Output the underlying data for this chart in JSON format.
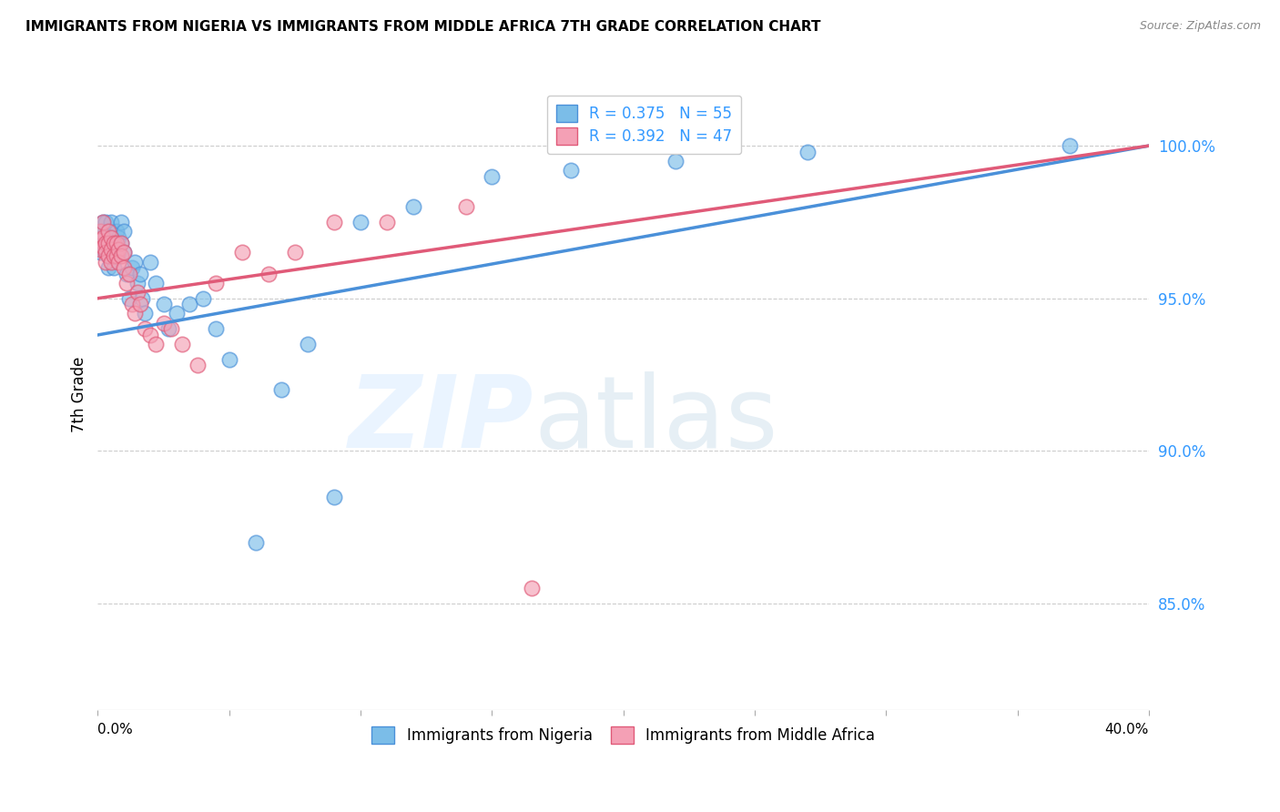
{
  "title": "IMMIGRANTS FROM NIGERIA VS IMMIGRANTS FROM MIDDLE AFRICA 7TH GRADE CORRELATION CHART",
  "source": "Source: ZipAtlas.com",
  "ylabel": "7th Grade",
  "yaxis_values": [
    1.0,
    0.95,
    0.9,
    0.85
  ],
  "xmin": 0.0,
  "xmax": 0.4,
  "ymin": 0.815,
  "ymax": 1.022,
  "legend_nigeria": "R = 0.375   N = 55",
  "legend_middle_africa": "R = 0.392   N = 47",
  "R_nigeria": 0.375,
  "N_nigeria": 55,
  "R_middle_africa": 0.392,
  "N_middle_africa": 47,
  "color_nigeria": "#7bbde8",
  "color_middle_africa": "#f4a0b5",
  "color_trendline_nigeria": "#4a90d9",
  "color_trendline_middle_africa": "#e05a78",
  "bottom_legend_nigeria": "Immigrants from Nigeria",
  "bottom_legend_middle_africa": "Immigrants from Middle Africa",
  "nigeria_x": [
    0.001,
    0.001,
    0.001,
    0.002,
    0.002,
    0.002,
    0.002,
    0.003,
    0.003,
    0.003,
    0.004,
    0.004,
    0.004,
    0.005,
    0.005,
    0.005,
    0.006,
    0.006,
    0.006,
    0.007,
    0.007,
    0.008,
    0.008,
    0.009,
    0.009,
    0.01,
    0.01,
    0.011,
    0.012,
    0.013,
    0.014,
    0.015,
    0.016,
    0.017,
    0.018,
    0.02,
    0.022,
    0.025,
    0.027,
    0.03,
    0.035,
    0.04,
    0.045,
    0.05,
    0.06,
    0.07,
    0.08,
    0.09,
    0.1,
    0.12,
    0.15,
    0.18,
    0.22,
    0.27,
    0.37
  ],
  "nigeria_y": [
    0.97,
    0.968,
    0.965,
    0.975,
    0.972,
    0.968,
    0.966,
    0.975,
    0.97,
    0.966,
    0.968,
    0.964,
    0.96,
    0.975,
    0.97,
    0.967,
    0.968,
    0.965,
    0.96,
    0.972,
    0.968,
    0.97,
    0.965,
    0.975,
    0.968,
    0.972,
    0.965,
    0.958,
    0.95,
    0.96,
    0.962,
    0.955,
    0.958,
    0.95,
    0.945,
    0.962,
    0.955,
    0.948,
    0.94,
    0.945,
    0.948,
    0.95,
    0.94,
    0.93,
    0.87,
    0.92,
    0.935,
    0.885,
    0.975,
    0.98,
    0.99,
    0.992,
    0.995,
    0.998,
    1.0
  ],
  "middle_africa_x": [
    0.001,
    0.001,
    0.001,
    0.002,
    0.002,
    0.002,
    0.003,
    0.003,
    0.003,
    0.004,
    0.004,
    0.004,
    0.005,
    0.005,
    0.005,
    0.006,
    0.006,
    0.007,
    0.007,
    0.008,
    0.008,
    0.009,
    0.009,
    0.01,
    0.01,
    0.011,
    0.012,
    0.013,
    0.014,
    0.015,
    0.016,
    0.018,
    0.02,
    0.022,
    0.025,
    0.028,
    0.032,
    0.038,
    0.045,
    0.055,
    0.065,
    0.075,
    0.09,
    0.11,
    0.14,
    0.165,
    0.195
  ],
  "middle_africa_y": [
    0.972,
    0.969,
    0.966,
    0.975,
    0.97,
    0.967,
    0.968,
    0.965,
    0.962,
    0.972,
    0.968,
    0.964,
    0.97,
    0.966,
    0.962,
    0.968,
    0.964,
    0.968,
    0.964,
    0.966,
    0.962,
    0.968,
    0.964,
    0.965,
    0.96,
    0.955,
    0.958,
    0.948,
    0.945,
    0.952,
    0.948,
    0.94,
    0.938,
    0.935,
    0.942,
    0.94,
    0.935,
    0.928,
    0.955,
    0.965,
    0.958,
    0.965,
    0.975,
    0.975,
    0.98,
    0.855,
    1.0
  ],
  "trendline_nig_x0": 0.0,
  "trendline_nig_y0": 0.938,
  "trendline_nig_x1": 0.4,
  "trendline_nig_y1": 1.0,
  "trendline_mid_x0": 0.0,
  "trendline_mid_y0": 0.95,
  "trendline_mid_x1": 0.4,
  "trendline_mid_y1": 1.0
}
